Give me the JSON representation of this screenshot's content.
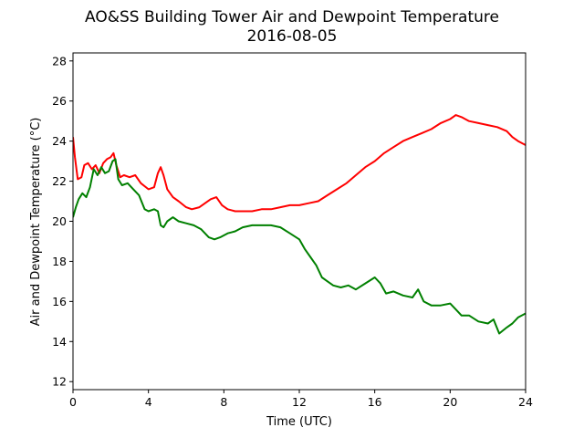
{
  "chart_data": {
    "type": "line",
    "title": "AO&SS Building Tower Air and Dewpoint Temperature",
    "subtitle": "2016-08-05",
    "xlabel": "Time (UTC)",
    "ylabel": "Air and Dewpoint Temperature (°C)",
    "xlim": [
      0,
      24
    ],
    "ylim": [
      11.6,
      28.4
    ],
    "x_ticks": [
      0,
      4,
      8,
      12,
      16,
      20,
      24
    ],
    "y_ticks": [
      12,
      14,
      16,
      18,
      20,
      22,
      24,
      26,
      28
    ],
    "grid": false,
    "legend": "none",
    "series": [
      {
        "color": "#ff0000",
        "x": [
          0,
          0.1,
          0.25,
          0.45,
          0.6,
          0.8,
          1.0,
          1.2,
          1.4,
          1.6,
          1.8,
          2.0,
          2.15,
          2.3,
          2.5,
          2.7,
          3.0,
          3.3,
          3.6,
          4.0,
          4.3,
          4.5,
          4.65,
          4.8,
          5.0,
          5.3,
          5.6,
          6.0,
          6.3,
          6.7,
          7.0,
          7.3,
          7.6,
          7.9,
          8.2,
          8.6,
          9.0,
          9.5,
          10.0,
          10.5,
          11.0,
          11.5,
          12.0,
          12.5,
          13.0,
          13.5,
          14.0,
          14.5,
          15.0,
          15.5,
          16.0,
          16.5,
          17.0,
          17.5,
          18.0,
          18.5,
          19.0,
          19.5,
          20.0,
          20.3,
          20.6,
          21.0,
          21.5,
          22.0,
          22.5,
          23.0,
          23.3,
          23.6,
          24.0
        ],
        "y": [
          24.2,
          23.2,
          22.1,
          22.2,
          22.8,
          22.9,
          22.6,
          22.8,
          22.4,
          22.9,
          23.1,
          23.2,
          23.4,
          22.8,
          22.2,
          22.3,
          22.2,
          22.3,
          21.9,
          21.6,
          21.7,
          22.4,
          22.7,
          22.3,
          21.6,
          21.2,
          21.0,
          20.7,
          20.6,
          20.7,
          20.9,
          21.1,
          21.2,
          20.8,
          20.6,
          20.5,
          20.5,
          20.5,
          20.6,
          20.6,
          20.7,
          20.8,
          20.8,
          20.9,
          21.0,
          21.3,
          21.6,
          21.9,
          22.3,
          22.7,
          23.0,
          23.4,
          23.7,
          24.0,
          24.2,
          24.4,
          24.6,
          24.9,
          25.1,
          25.3,
          25.2,
          25.0,
          24.9,
          24.8,
          24.7,
          24.5,
          24.2,
          24.0,
          23.8
        ]
      },
      {
        "color": "#008000",
        "x": [
          0,
          0.15,
          0.3,
          0.5,
          0.7,
          0.9,
          1.1,
          1.3,
          1.5,
          1.7,
          1.9,
          2.1,
          2.25,
          2.4,
          2.6,
          2.9,
          3.2,
          3.5,
          3.8,
          4.0,
          4.3,
          4.5,
          4.65,
          4.8,
          5.0,
          5.3,
          5.6,
          6.0,
          6.4,
          6.8,
          7.2,
          7.5,
          7.8,
          8.2,
          8.6,
          9.0,
          9.5,
          10.0,
          10.5,
          11.0,
          11.5,
          12.0,
          12.3,
          12.6,
          12.9,
          13.2,
          13.5,
          13.8,
          14.2,
          14.6,
          15.0,
          15.5,
          16.0,
          16.3,
          16.6,
          17.0,
          17.5,
          18.0,
          18.3,
          18.6,
          19.0,
          19.5,
          20.0,
          20.3,
          20.6,
          21.0,
          21.5,
          22.0,
          22.3,
          22.6,
          23.0,
          23.3,
          23.6,
          24.0
        ],
        "y": [
          20.2,
          20.7,
          21.1,
          21.4,
          21.2,
          21.7,
          22.6,
          22.3,
          22.7,
          22.4,
          22.5,
          23.0,
          23.1,
          22.1,
          21.8,
          21.9,
          21.6,
          21.3,
          20.6,
          20.5,
          20.6,
          20.5,
          19.8,
          19.7,
          20.0,
          20.2,
          20.0,
          19.9,
          19.8,
          19.6,
          19.2,
          19.1,
          19.2,
          19.4,
          19.5,
          19.7,
          19.8,
          19.8,
          19.8,
          19.7,
          19.4,
          19.1,
          18.6,
          18.2,
          17.8,
          17.2,
          17.0,
          16.8,
          16.7,
          16.8,
          16.6,
          16.9,
          17.2,
          16.9,
          16.4,
          16.5,
          16.3,
          16.2,
          16.6,
          16.0,
          15.8,
          15.8,
          15.9,
          15.6,
          15.3,
          15.3,
          15.0,
          14.9,
          15.1,
          14.4,
          14.7,
          14.9,
          15.2,
          15.4
        ]
      }
    ]
  }
}
